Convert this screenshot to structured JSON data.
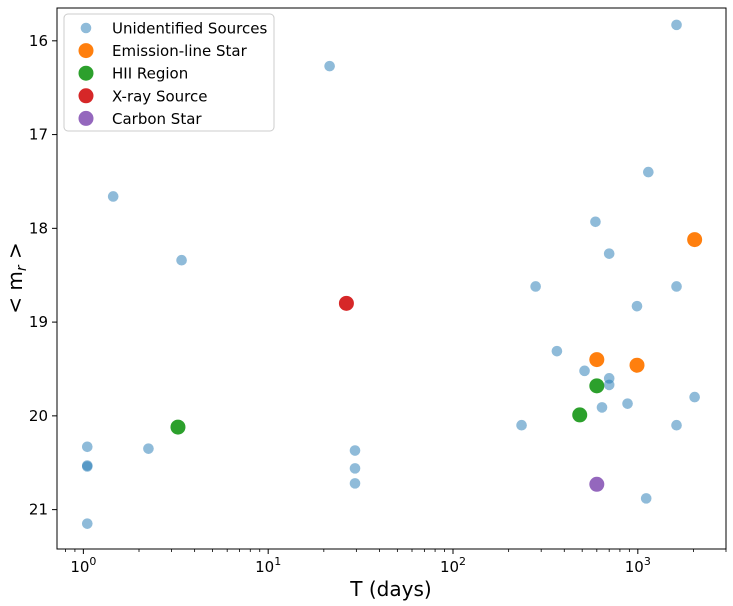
{
  "chart_data": {
    "type": "scatter",
    "xlabel": "T (days)",
    "ylabel": "< m",
    "ylabel_sub": "r",
    "ylabel_end": " >",
    "x_scale": "log",
    "xlim": [
      0.72,
      3000
    ],
    "ylim": [
      21.42,
      15.65
    ],
    "y_inverted": true,
    "xticks": [
      1,
      10,
      100,
      1000
    ],
    "xtick_labels": [
      {
        "base": "10",
        "exp": "0"
      },
      {
        "base": "10",
        "exp": "1"
      },
      {
        "base": "10",
        "exp": "2"
      },
      {
        "base": "10",
        "exp": "3"
      }
    ],
    "yticks": [
      16,
      17,
      18,
      19,
      20,
      21
    ],
    "ytick_labels": [
      "16",
      "17",
      "18",
      "19",
      "20",
      "21"
    ],
    "grid": false,
    "legend_position": "top-left",
    "series": [
      {
        "name": "Unidentified Sources",
        "color": "#1f77b4",
        "alpha": 0.5,
        "size": "small",
        "points": [
          {
            "x": 1.05,
            "y": 20.33
          },
          {
            "x": 1.05,
            "y": 20.53
          },
          {
            "x": 1.05,
            "y": 20.54
          },
          {
            "x": 1.05,
            "y": 21.15
          },
          {
            "x": 1.45,
            "y": 17.66
          },
          {
            "x": 2.25,
            "y": 20.35
          },
          {
            "x": 3.4,
            "y": 18.34
          },
          {
            "x": 21.5,
            "y": 16.27
          },
          {
            "x": 29.5,
            "y": 20.37
          },
          {
            "x": 29.5,
            "y": 20.56
          },
          {
            "x": 29.5,
            "y": 20.72
          },
          {
            "x": 235,
            "y": 20.1
          },
          {
            "x": 280,
            "y": 18.62
          },
          {
            "x": 365,
            "y": 19.31
          },
          {
            "x": 515,
            "y": 19.52
          },
          {
            "x": 590,
            "y": 17.93
          },
          {
            "x": 640,
            "y": 19.91
          },
          {
            "x": 700,
            "y": 18.27
          },
          {
            "x": 700,
            "y": 19.6
          },
          {
            "x": 700,
            "y": 19.67
          },
          {
            "x": 880,
            "y": 19.87
          },
          {
            "x": 990,
            "y": 18.83
          },
          {
            "x": 1110,
            "y": 20.88
          },
          {
            "x": 1140,
            "y": 17.4
          },
          {
            "x": 1620,
            "y": 15.83
          },
          {
            "x": 1620,
            "y": 18.62
          },
          {
            "x": 1620,
            "y": 20.1
          },
          {
            "x": 2030,
            "y": 19.8
          }
        ]
      },
      {
        "name": "Emission-line Star",
        "color": "#ff7f0e",
        "alpha": 1,
        "size": "large",
        "points": [
          {
            "x": 2030,
            "y": 18.12
          },
          {
            "x": 600,
            "y": 19.4
          },
          {
            "x": 990,
            "y": 19.46
          }
        ]
      },
      {
        "name": "HII Region",
        "color": "#2ca02c",
        "alpha": 1,
        "size": "large",
        "points": [
          {
            "x": 600,
            "y": 19.68
          },
          {
            "x": 485,
            "y": 19.99
          },
          {
            "x": 3.25,
            "y": 20.12
          }
        ]
      },
      {
        "name": "X-ray Source",
        "color": "#d62728",
        "alpha": 1,
        "size": "large",
        "points": [
          {
            "x": 26.5,
            "y": 18.8
          }
        ]
      },
      {
        "name": "Carbon Star",
        "color": "#9467bd",
        "alpha": 1,
        "size": "large",
        "points": [
          {
            "x": 600,
            "y": 20.73
          }
        ]
      }
    ]
  }
}
